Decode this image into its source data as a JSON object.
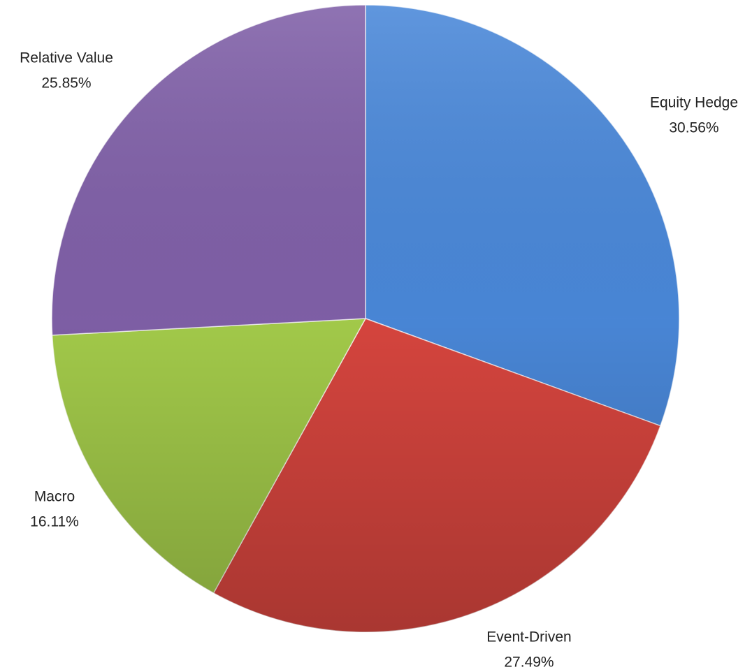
{
  "chart_data": {
    "type": "pie",
    "categories": [
      "Equity Hedge",
      "Event-Driven",
      "Macro",
      "Relative Value"
    ],
    "values": [
      30.56,
      27.49,
      16.11,
      25.85
    ],
    "value_labels": [
      "30.56%",
      "27.49%",
      "16.11%",
      "25.85%"
    ],
    "colors": [
      "#4a88d9",
      "#d9463f",
      "#a5cd4b",
      "#8060a8"
    ]
  }
}
